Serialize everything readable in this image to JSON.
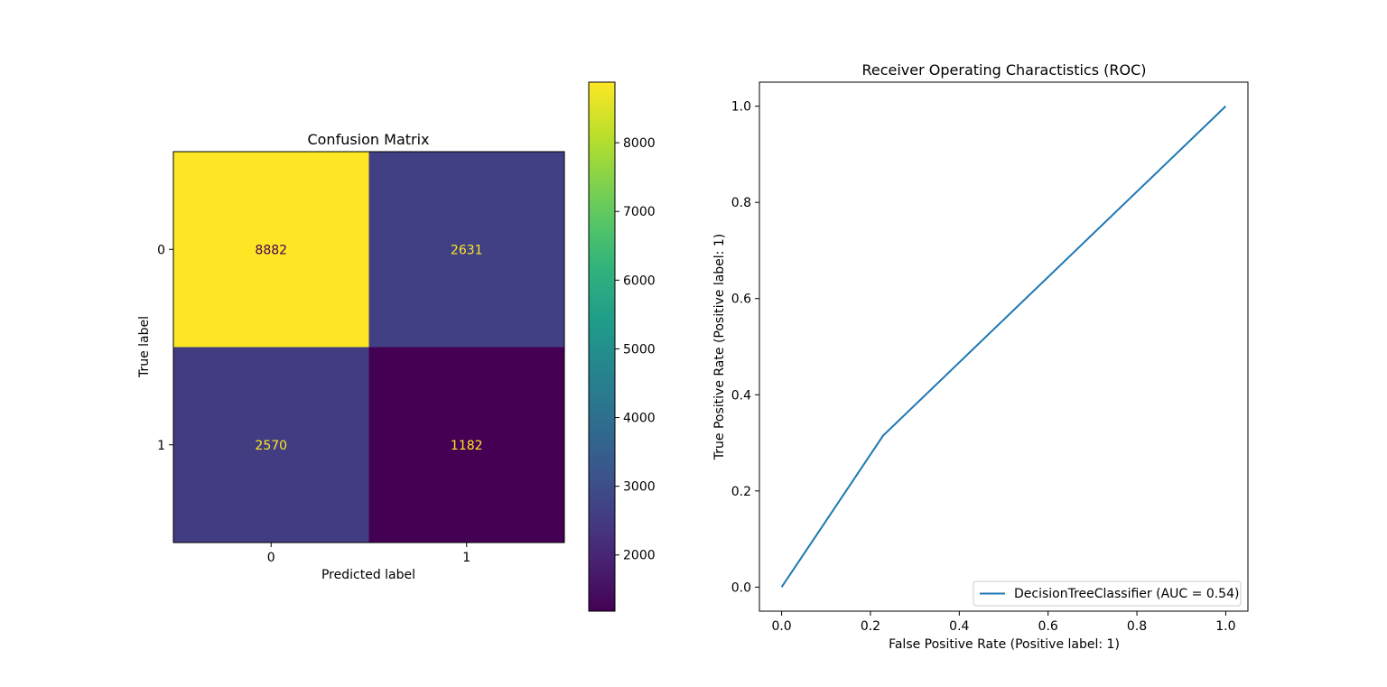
{
  "chart_data": [
    {
      "type": "heatmap",
      "title": "Confusion Matrix",
      "xlabel": "Predicted label",
      "ylabel": "True label",
      "x_categories": [
        "0",
        "1"
      ],
      "y_categories": [
        "0",
        "1"
      ],
      "values": [
        [
          8882,
          2631
        ],
        [
          2570,
          1182
        ]
      ],
      "colormap": "viridis",
      "colorbar": {
        "range": [
          1182,
          8882
        ],
        "ticks": [
          2000,
          3000,
          4000,
          5000,
          6000,
          7000,
          8000
        ]
      },
      "text_colors": {
        "dark_cell": "#fde725",
        "light_cell": "#440154"
      }
    },
    {
      "type": "line",
      "title": "Receiver Operating Charactistics (ROC)",
      "xlabel": "False Positive Rate (Positive label: 1)",
      "ylabel": "True Positive Rate (Positive label: 1)",
      "xlim": [
        -0.05,
        1.05
      ],
      "ylim": [
        -0.05,
        1.05
      ],
      "xticks": [
        0.0,
        0.2,
        0.4,
        0.6,
        0.8,
        1.0
      ],
      "yticks": [
        0.0,
        0.2,
        0.4,
        0.6,
        0.8,
        1.0
      ],
      "grid": false,
      "legend_position": "lower-right",
      "series": [
        {
          "name": "DecisionTreeClassifier (AUC = 0.54)",
          "color": "#1f77b4",
          "x": [
            0.0,
            0.2285,
            1.0
          ],
          "y": [
            0.0,
            0.315,
            1.0
          ]
        }
      ]
    }
  ]
}
